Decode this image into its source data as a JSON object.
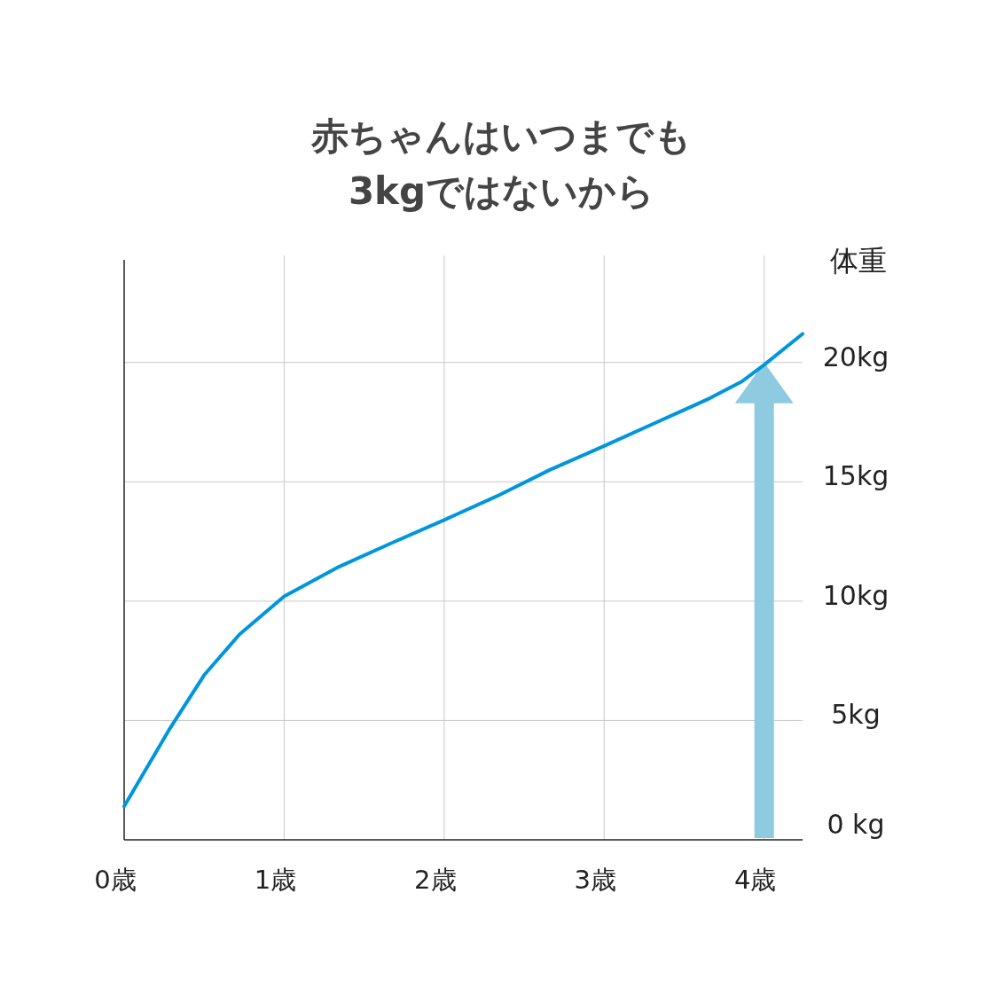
{
  "chart_data": {
    "type": "line",
    "title": "赤ちゃんはいつまでも\n3kgではないから",
    "ylabel": "体重",
    "x": [
      0,
      0.28,
      0.5,
      0.72,
      1.0,
      1.33,
      1.66,
      2.0,
      2.33,
      2.66,
      3.0,
      3.33,
      3.66,
      3.86,
      4.0,
      4.24
    ],
    "series": [
      {
        "color": "#0096dc",
        "values": [
          1.4,
          4.6,
          6.9,
          8.6,
          10.2,
          11.4,
          12.4,
          13.4,
          14.4,
          15.5,
          16.5,
          17.5,
          18.5,
          19.2,
          19.9,
          21.2
        ]
      }
    ],
    "xlim": [
      0,
      4.24
    ],
    "ylim": [
      0,
      24.3
    ],
    "xticks": [
      {
        "value": 0,
        "label": "0歳"
      },
      {
        "value": 1,
        "label": "1歳"
      },
      {
        "value": 2,
        "label": "2歳"
      },
      {
        "value": 3,
        "label": "3歳"
      },
      {
        "value": 4,
        "label": "4歳"
      }
    ],
    "yticks": [
      {
        "value": 0,
        "label": "0 kg"
      },
      {
        "value": 5,
        "label": "5kg"
      },
      {
        "value": 10,
        "label": "10kg"
      },
      {
        "value": 15,
        "label": "15kg"
      },
      {
        "value": 20,
        "label": "20kg"
      }
    ],
    "grid": true,
    "marker": "none",
    "line_style": "solid"
  }
}
